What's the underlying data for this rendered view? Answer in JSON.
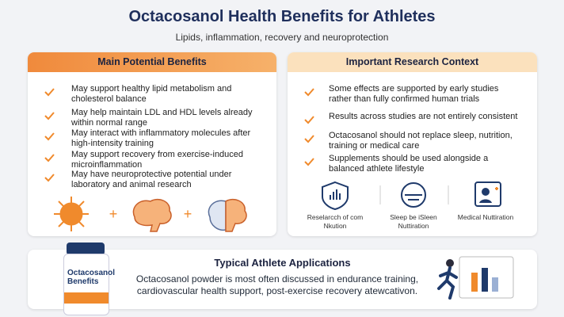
{
  "header": {
    "title": "Octacosanol Health Benefits for Athletes",
    "subtitle": "Lipids, inflammation, recovery and neuroprotection"
  },
  "benefits": {
    "title": "Main Potential Benefits",
    "items": [
      "May support healthy lipid metabolism and cholesterol balance",
      "May help maintain LDL and HDL levels already within normal range",
      "May interact with inflammatory molecules after high-intensity training",
      "May support recovery from exercise-induced microinflammation",
      "May have neuroprotective potential under laboratory and animal research"
    ]
  },
  "context": {
    "title": "Important Research Context",
    "items": [
      "Some effects are supported by early studies rather than fully confirmed human trials",
      "Results across studies are not entirely consistent",
      "Octacosanol should not replace sleep, nutrition, training or medical care",
      "Supplements should be used alongside a balanced athlete lifestyle"
    ],
    "icons": [
      "Reselarcch of com Nkution",
      "Sleep be iSleen Nuttiration",
      "Medical Nuttiration"
    ]
  },
  "applications": {
    "title": "Typical Athlete Applications",
    "text": "Octacosanol powder is most often discussed in endurance training, cardiovascular health support, post-exercise recovery atewcativon.",
    "product": "Octacosanol Benefits"
  }
}
